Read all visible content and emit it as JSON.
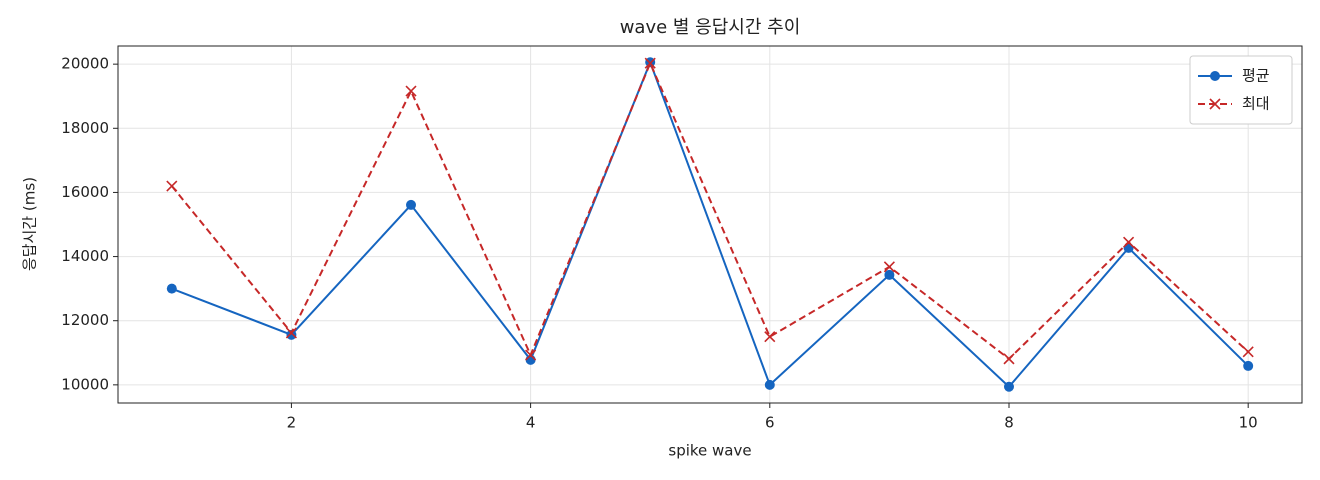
{
  "chart_data": {
    "type": "line",
    "title": "wave 별 응답시간 추이",
    "xlabel": "spike wave",
    "ylabel": "응답시간 (ms)",
    "x": [
      1,
      2,
      3,
      4,
      5,
      6,
      7,
      8,
      9,
      10
    ],
    "series": [
      {
        "name": "평균",
        "color": "#1565c0",
        "marker": "circle",
        "dash": "solid",
        "values": [
          13000,
          11560,
          15610,
          10780,
          20060,
          10000,
          13430,
          9940,
          14270,
          10590
        ]
      },
      {
        "name": "최대",
        "color": "#c62828",
        "marker": "x",
        "dash": "dashed",
        "values": [
          16200,
          11620,
          19160,
          10930,
          20030,
          11500,
          13680,
          10810,
          14450,
          11030
        ]
      }
    ],
    "xlim": [
      0.55,
      10.45
    ],
    "xticks": [
      2,
      4,
      6,
      8,
      10
    ],
    "ylim": [
      9434,
      20566
    ],
    "yticks": [
      10000,
      12000,
      14000,
      16000,
      18000,
      20000
    ],
    "grid": true,
    "legend": "upper right"
  }
}
